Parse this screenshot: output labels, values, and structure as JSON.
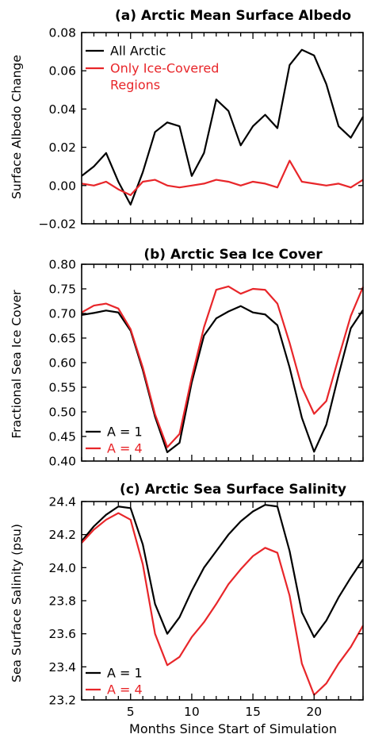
{
  "chart_data": [
    {
      "type": "line",
      "title": "(a) Arctic Mean Surface Albedo",
      "ylabel": "Surface Albedo Change",
      "xlabel": "",
      "xlim": [
        1,
        24
      ],
      "ylim": [
        -0.02,
        0.08
      ],
      "xticks": [
        5,
        10,
        15,
        20
      ],
      "yticks": [
        -0.02,
        0.0,
        0.02,
        0.04,
        0.06,
        0.08
      ],
      "ytick_labels": [
        "−0.02",
        "0.00",
        "0.02",
        "0.04",
        "0.06",
        "0.08"
      ],
      "legend_position": "top-left",
      "x": [
        1,
        2,
        3,
        4,
        5,
        6,
        7,
        8,
        9,
        10,
        11,
        12,
        13,
        14,
        15,
        16,
        17,
        18,
        19,
        20,
        21,
        22,
        23,
        24
      ],
      "series": [
        {
          "name": "All Arctic",
          "color": "#000000",
          "legend_lines": [
            "All Arctic"
          ],
          "values": [
            0.005,
            0.01,
            0.017,
            0.002,
            -0.01,
            0.007,
            0.028,
            0.033,
            0.031,
            0.005,
            0.017,
            0.045,
            0.039,
            0.021,
            0.031,
            0.037,
            0.03,
            0.063,
            0.071,
            0.068,
            0.053,
            0.031,
            0.025,
            0.036
          ]
        },
        {
          "name": "Only Ice-Covered Regions",
          "color": "#e8262a",
          "legend_lines": [
            "Only Ice-Covered",
            "Regions"
          ],
          "values": [
            0.001,
            0.0,
            0.002,
            -0.002,
            -0.005,
            0.002,
            0.003,
            0.0,
            -0.001,
            0.0,
            0.001,
            0.003,
            0.002,
            0.0,
            0.002,
            0.001,
            -0.001,
            0.013,
            0.002,
            0.001,
            0.0,
            0.001,
            -0.001,
            0.003
          ]
        }
      ]
    },
    {
      "type": "line",
      "title": "(b) Arctic Sea Ice Cover",
      "ylabel": "Fractional Sea Ice Cover",
      "xlabel": "",
      "xlim": [
        1,
        24
      ],
      "ylim": [
        0.4,
        0.8
      ],
      "xticks": [
        5,
        10,
        15,
        20
      ],
      "yticks": [
        0.4,
        0.45,
        0.5,
        0.55,
        0.6,
        0.65,
        0.7,
        0.75,
        0.8
      ],
      "ytick_labels": [
        "0.40",
        "0.45",
        "0.50",
        "0.55",
        "0.60",
        "0.65",
        "0.70",
        "0.75",
        "0.80"
      ],
      "legend_position": "bottom-left",
      "x": [
        1,
        2,
        3,
        4,
        5,
        6,
        7,
        8,
        9,
        10,
        11,
        12,
        13,
        14,
        15,
        16,
        17,
        18,
        19,
        20,
        21,
        22,
        23,
        24
      ],
      "series": [
        {
          "name": "A = 1",
          "color": "#000000",
          "legend_lines": [
            "A = 1"
          ],
          "values": [
            0.697,
            0.701,
            0.706,
            0.702,
            0.665,
            0.585,
            0.49,
            0.418,
            0.437,
            0.56,
            0.655,
            0.69,
            0.704,
            0.715,
            0.702,
            0.698,
            0.676,
            0.59,
            0.488,
            0.419,
            0.474,
            0.575,
            0.67,
            0.707
          ]
        },
        {
          "name": "A = 4",
          "color": "#e8262a",
          "legend_lines": [
            "A = 4"
          ],
          "values": [
            0.702,
            0.716,
            0.72,
            0.71,
            0.668,
            0.59,
            0.495,
            0.428,
            0.455,
            0.57,
            0.672,
            0.748,
            0.755,
            0.74,
            0.75,
            0.748,
            0.72,
            0.64,
            0.55,
            0.496,
            0.522,
            0.61,
            0.695,
            0.754
          ]
        }
      ]
    },
    {
      "type": "line",
      "title": "(c) Arctic Sea Surface Salinity",
      "ylabel": "Sea Surface Salinity (psu)",
      "xlabel": "Months Since Start of Simulation",
      "xlim": [
        1,
        24
      ],
      "ylim": [
        23.2,
        24.4
      ],
      "xticks": [
        5,
        10,
        15,
        20
      ],
      "yticks": [
        23.2,
        23.4,
        23.6,
        23.8,
        24.0,
        24.2,
        24.4
      ],
      "ytick_labels": [
        "23.2",
        "23.4",
        "23.6",
        "23.8",
        "24.0",
        "24.2",
        "24.4"
      ],
      "legend_position": "bottom-left",
      "x": [
        1,
        2,
        3,
        4,
        5,
        6,
        7,
        8,
        9,
        10,
        11,
        12,
        13,
        14,
        15,
        16,
        17,
        18,
        19,
        20,
        21,
        22,
        23,
        24
      ],
      "series": [
        {
          "name": "A = 1",
          "color": "#000000",
          "legend_lines": [
            "A = 1"
          ],
          "values": [
            24.16,
            24.25,
            24.32,
            24.37,
            24.36,
            24.14,
            23.78,
            23.6,
            23.7,
            23.86,
            24.0,
            24.1,
            24.2,
            24.28,
            24.34,
            24.38,
            24.37,
            24.1,
            23.73,
            23.58,
            23.68,
            23.82,
            23.94,
            24.05
          ]
        },
        {
          "name": "A = 4",
          "color": "#e8262a",
          "legend_lines": [
            "A = 4"
          ],
          "values": [
            24.15,
            24.23,
            24.29,
            24.33,
            24.29,
            24.02,
            23.6,
            23.41,
            23.46,
            23.58,
            23.67,
            23.78,
            23.9,
            23.99,
            24.07,
            24.12,
            24.09,
            23.83,
            23.42,
            23.23,
            23.3,
            23.42,
            23.52,
            23.65
          ]
        }
      ]
    }
  ]
}
